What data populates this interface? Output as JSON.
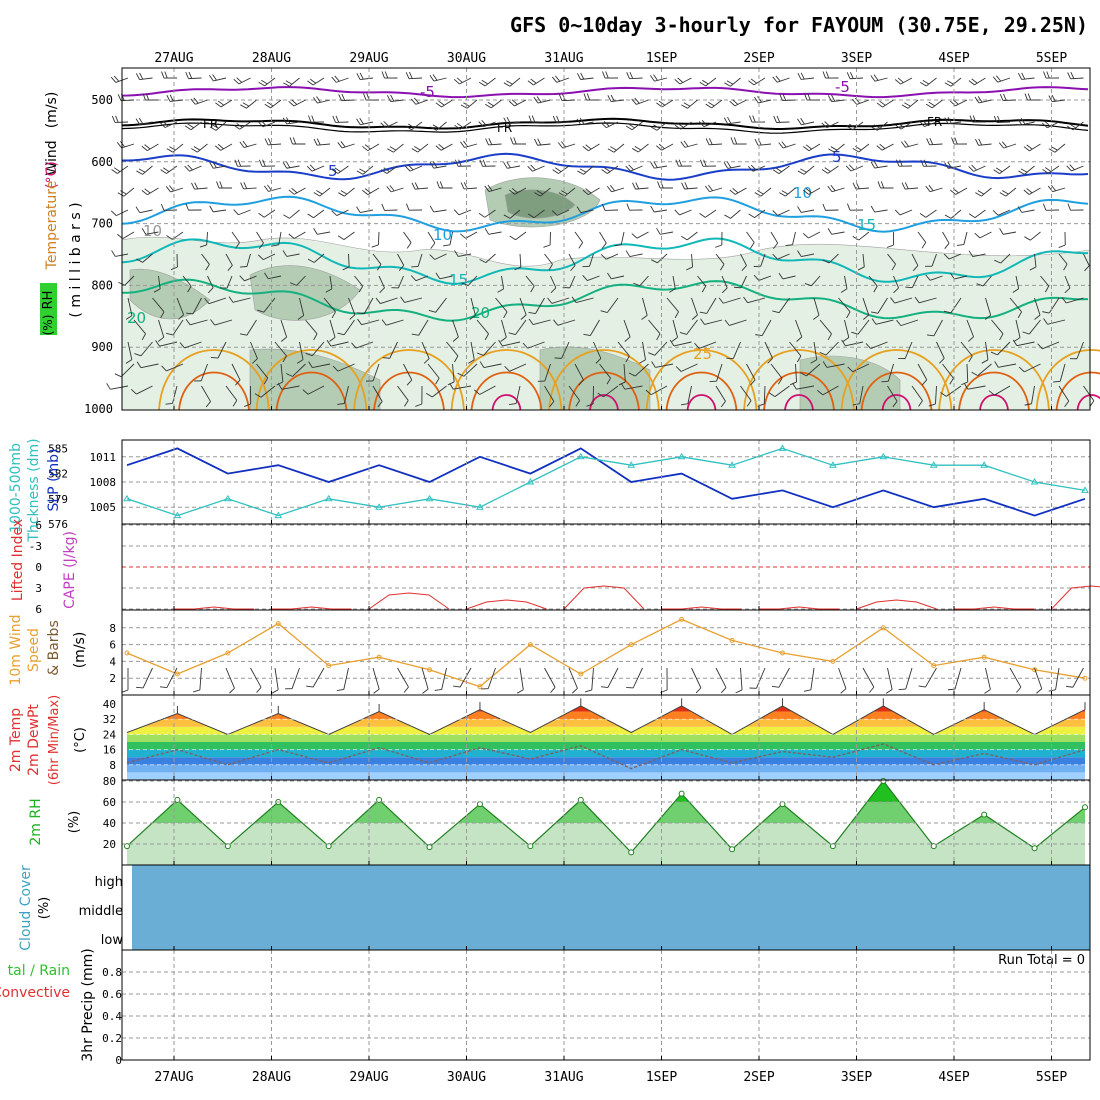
{
  "title": "GFS 0~10day 3-hourly for FAYOUM (30.75E, 29.25N)",
  "date_labels": [
    "27AUG",
    "28AUG",
    "29AUG",
    "30AUG",
    "31AUG",
    "1SEP",
    "2SEP",
    "3SEP",
    "4SEP",
    "5SEP"
  ],
  "colors": {
    "frame": "#000000",
    "grid": "#9a9a9a",
    "t_minus5": "#8a10b0",
    "t_fr": "#000000",
    "t_5": "#1a3ec8",
    "t_10": "#1f9fe0",
    "t_15": "#12b8b8",
    "t_20": "#14b080",
    "t_25": "#e8a020",
    "t_30": "#e06010",
    "t_35": "#d01070",
    "rh_light": "#e3f0e3",
    "rh_mid": "#b3ccb3",
    "rh_dark": "#7f9e7f",
    "slp": "#1030c0",
    "thickness": "#30c0c0",
    "lifted": "#e03030",
    "cape": "#c040c0",
    "wind10": "#e8a030",
    "barb": "#806040",
    "dewpt": "#806060",
    "rh2m": "#20c020",
    "cloud": "#6aaed6",
    "run_total": "#000000"
  },
  "panels": {
    "upper_air": {
      "label_wind": "Wind",
      "label_wind_units": "(m/s)",
      "label_temp": "Temperature",
      "label_temp_units": "(°C)",
      "label_rh": "RH",
      "label_rh_units": "(%)",
      "label_millibars": "( m i l l i b a r s )",
      "pressure_levels": [
        "500",
        "600",
        "700",
        "800",
        "900",
        "1000"
      ],
      "contour_labels": [
        "-5",
        "-5",
        "FR",
        "FR",
        "FR",
        "5",
        "5",
        "10",
        "10",
        "10",
        "15",
        "15",
        "20",
        "20",
        "25",
        "10"
      ]
    },
    "slp_thickness": {
      "label_thick": "1000-500mb",
      "label_thick2": "Thckness (dm)",
      "label_slp": "SLP (mb)",
      "slp_ticks": [
        "1011",
        "1008",
        "1005"
      ],
      "thick_ticks": [
        "585",
        "582",
        "579",
        "576"
      ]
    },
    "li_cape": {
      "label_li": "Lifted Index",
      "label_cape": "CAPE (J/kg)",
      "ticks": [
        "-6",
        "-3",
        "0",
        "3",
        "6"
      ]
    },
    "wind10": {
      "label_1": "10m Wind",
      "label_2": "Speed",
      "label_3": "& Barbs",
      "units": "(m/s)",
      "ticks": [
        "8",
        "6",
        "4",
        "2"
      ]
    },
    "temp2m": {
      "label_1": "2m Temp",
      "label_2": "2m DewPt",
      "label_3": "(6hr Min/Max)",
      "units": "(°C)",
      "ticks": [
        "40",
        "32",
        "24",
        "16",
        "8"
      ]
    },
    "rh2m": {
      "label": "2m RH",
      "units": "(%)",
      "ticks": [
        "80",
        "60",
        "40",
        "20"
      ]
    },
    "cloud": {
      "label": "Cloud Cover",
      "units": "(%)",
      "levels": [
        "high",
        "middle",
        "low"
      ]
    },
    "precip": {
      "label_1": "tal / Rain",
      "label_2": "Convective",
      "label_3": "3hr Precip (mm)",
      "ticks": [
        "0.8",
        "0.6",
        "0.4",
        "0.2",
        "0"
      ],
      "run_total": "Run Total = 0"
    }
  },
  "chart_data": [
    {
      "type": "line",
      "title": "SLP (mb)",
      "x": [
        "27AUG 00",
        "27AUG 12",
        "28AUG 00",
        "28AUG 12",
        "29AUG 00",
        "29AUG 12",
        "30AUG 00",
        "30AUG 12",
        "31AUG 00",
        "31AUG 12",
        "1SEP 00",
        "1SEP 12",
        "2SEP 00",
        "2SEP 12",
        "3SEP 00",
        "3SEP 12",
        "4SEP 00",
        "4SEP 12",
        "5SEP 00",
        "5SEP 12"
      ],
      "series": [
        {
          "name": "SLP (mb)",
          "values": [
            1010,
            1012,
            1009,
            1010,
            1008,
            1010,
            1008,
            1011,
            1009,
            1012,
            1008,
            1009,
            1006,
            1007,
            1005,
            1007,
            1005,
            1006,
            1004,
            1006
          ]
        },
        {
          "name": "1000-500mb Thckness (dm)",
          "values": [
            579,
            577,
            579,
            577,
            579,
            578,
            579,
            578,
            581,
            584,
            583,
            584,
            583,
            585,
            583,
            584,
            583,
            583,
            581,
            580
          ]
        }
      ],
      "ylim_slp": [
        1003,
        1013
      ],
      "ylim_thick": [
        576,
        586
      ]
    },
    {
      "type": "line",
      "title": "Lifted Index",
      "x": [
        "27AUG",
        "28AUG",
        "29AUG",
        "30AUG",
        "31AUG",
        "1SEP",
        "2SEP",
        "3SEP",
        "4SEP",
        "5SEP"
      ],
      "series": [
        {
          "name": "Lifted Index",
          "values": [
            6,
            6,
            4,
            5,
            3,
            6,
            6,
            5,
            6,
            3
          ]
        }
      ],
      "ylim": [
        6,
        -6
      ]
    },
    {
      "type": "line",
      "title": "10m Wind Speed",
      "x": [
        "27AUG 00",
        "27AUG 12",
        "28AUG 00",
        "28AUG 12",
        "29AUG 00",
        "29AUG 12",
        "30AUG 00",
        "30AUG 12",
        "31AUG 00",
        "31AUG 12",
        "1SEP 00",
        "1SEP 12",
        "2SEP 00",
        "2SEP 12",
        "3SEP 00",
        "3SEP 12",
        "4SEP 00",
        "4SEP 12",
        "5SEP 00",
        "5SEP 12"
      ],
      "series": [
        {
          "name": "10m Wind Speed",
          "values": [
            5,
            2.5,
            5,
            8.5,
            3.5,
            4.5,
            3,
            1,
            6,
            2.5,
            6,
            9,
            6.5,
            5,
            4,
            8,
            3.5,
            4.5,
            3,
            2
          ]
        }
      ],
      "ylim": [
        0,
        10
      ]
    },
    {
      "type": "area",
      "title": "2m Temp",
      "x": [
        "27AUG 00",
        "27AUG 12",
        "28AUG 00",
        "28AUG 12",
        "29AUG 00",
        "29AUG 12",
        "30AUG 00",
        "30AUG 12",
        "31AUG 00",
        "31AUG 12",
        "1SEP 00",
        "1SEP 12",
        "2SEP 00",
        "2SEP 12",
        "3SEP 00",
        "3SEP 12",
        "4SEP 00",
        "4SEP 12",
        "5SEP 00",
        "5SEP 12"
      ],
      "series": [
        {
          "name": "2m Temp",
          "values": [
            25,
            35,
            24,
            35,
            24,
            36,
            24,
            37,
            25,
            39,
            25,
            39,
            24,
            39,
            24,
            39,
            24,
            37,
            24,
            37
          ]
        },
        {
          "name": "2m DewPt",
          "values": [
            9,
            16,
            8,
            16,
            9,
            17,
            9,
            17,
            11,
            18,
            6,
            16,
            9,
            15,
            12,
            19,
            8,
            14,
            8,
            16
          ]
        }
      ],
      "ylim": [
        0,
        42
      ]
    },
    {
      "type": "area",
      "title": "2m RH",
      "x": [
        "27AUG 00",
        "27AUG 12",
        "28AUG 00",
        "28AUG 12",
        "29AUG 00",
        "29AUG 12",
        "30AUG 00",
        "30AUG 12",
        "31AUG 00",
        "31AUG 12",
        "1SEP 00",
        "1SEP 12",
        "2SEP 00",
        "2SEP 12",
        "3SEP 00",
        "3SEP 12",
        "4SEP 00",
        "4SEP 12",
        "5SEP 00",
        "5SEP 12"
      ],
      "series": [
        {
          "name": "2m RH",
          "values": [
            18,
            62,
            18,
            60,
            18,
            62,
            17,
            58,
            18,
            62,
            12,
            68,
            15,
            58,
            18,
            80,
            18,
            48,
            16,
            55
          ]
        }
      ],
      "ylim": [
        0,
        85
      ]
    }
  ]
}
